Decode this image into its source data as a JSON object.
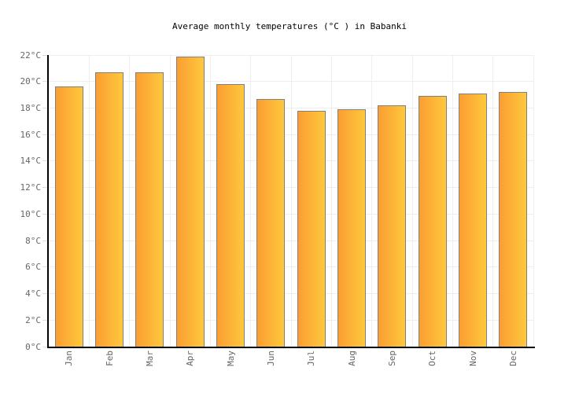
{
  "title": "Average monthly temperatures (°C ) in Babanki",
  "chart_data": {
    "type": "bar",
    "title": "Average monthly temperatures (°C ) in Babanki",
    "categories": [
      "Jan",
      "Feb",
      "Mar",
      "Apr",
      "May",
      "Jun",
      "Jul",
      "Aug",
      "Sep",
      "Oct",
      "Nov",
      "Dec"
    ],
    "values": [
      19.6,
      20.7,
      20.7,
      21.9,
      19.8,
      18.7,
      17.8,
      17.9,
      18.2,
      18.9,
      19.1,
      19.2
    ],
    "xlabel": "",
    "ylabel": "",
    "ylim": [
      0,
      22
    ],
    "ytick_step": 2,
    "ytick_suffix": "°C",
    "grid": true,
    "legend": false,
    "colors": {
      "background": "#FFFFFF",
      "title": "#000000",
      "bar_gradient_left": "#FB9E32",
      "bar_gradient_right": "#FEC83D",
      "bar_border": "#808080",
      "gridline": "#EEEEEE",
      "axis_line": "#000000",
      "tick_label": "#666666"
    }
  }
}
